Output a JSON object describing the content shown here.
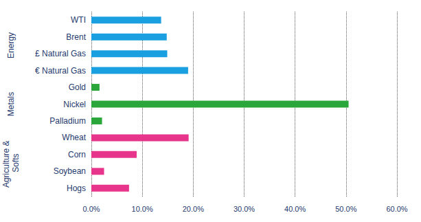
{
  "chart_data": {
    "type": "bar",
    "orientation": "horizontal",
    "categories": [
      "WTI",
      "Brent",
      "£ Natural Gas",
      "€ Natural Gas",
      "Gold",
      "Nickel",
      "Palladium",
      "Wheat",
      "Corn",
      "Soybean",
      "Hogs"
    ],
    "series": [
      {
        "name": "Energy",
        "color": "#1a9fe0",
        "values": [
          13.7,
          14.8,
          14.9,
          19.0,
          null,
          null,
          null,
          null,
          null,
          null,
          null
        ]
      },
      {
        "name": "Metals",
        "color": "#2aa63a",
        "values": [
          null,
          null,
          null,
          null,
          1.6,
          50.5,
          2.1,
          null,
          null,
          null,
          null
        ]
      },
      {
        "name": "Agriculture & Softs",
        "color": "#e8358c",
        "values": [
          null,
          null,
          null,
          null,
          null,
          null,
          null,
          19.1,
          8.9,
          2.5,
          7.4
        ]
      }
    ],
    "xlim": [
      0,
      60
    ],
    "xticks": [
      {
        "value": 0,
        "label": "0.0%"
      },
      {
        "value": 10,
        "label": "10.0%"
      },
      {
        "value": 20,
        "label": "20.0%"
      },
      {
        "value": 30,
        "label": "30.0%"
      },
      {
        "value": 40,
        "label": "40.0%"
      },
      {
        "value": 50,
        "label": "50.0%"
      },
      {
        "value": 60,
        "label": "60.0%"
      }
    ],
    "grid": true
  }
}
